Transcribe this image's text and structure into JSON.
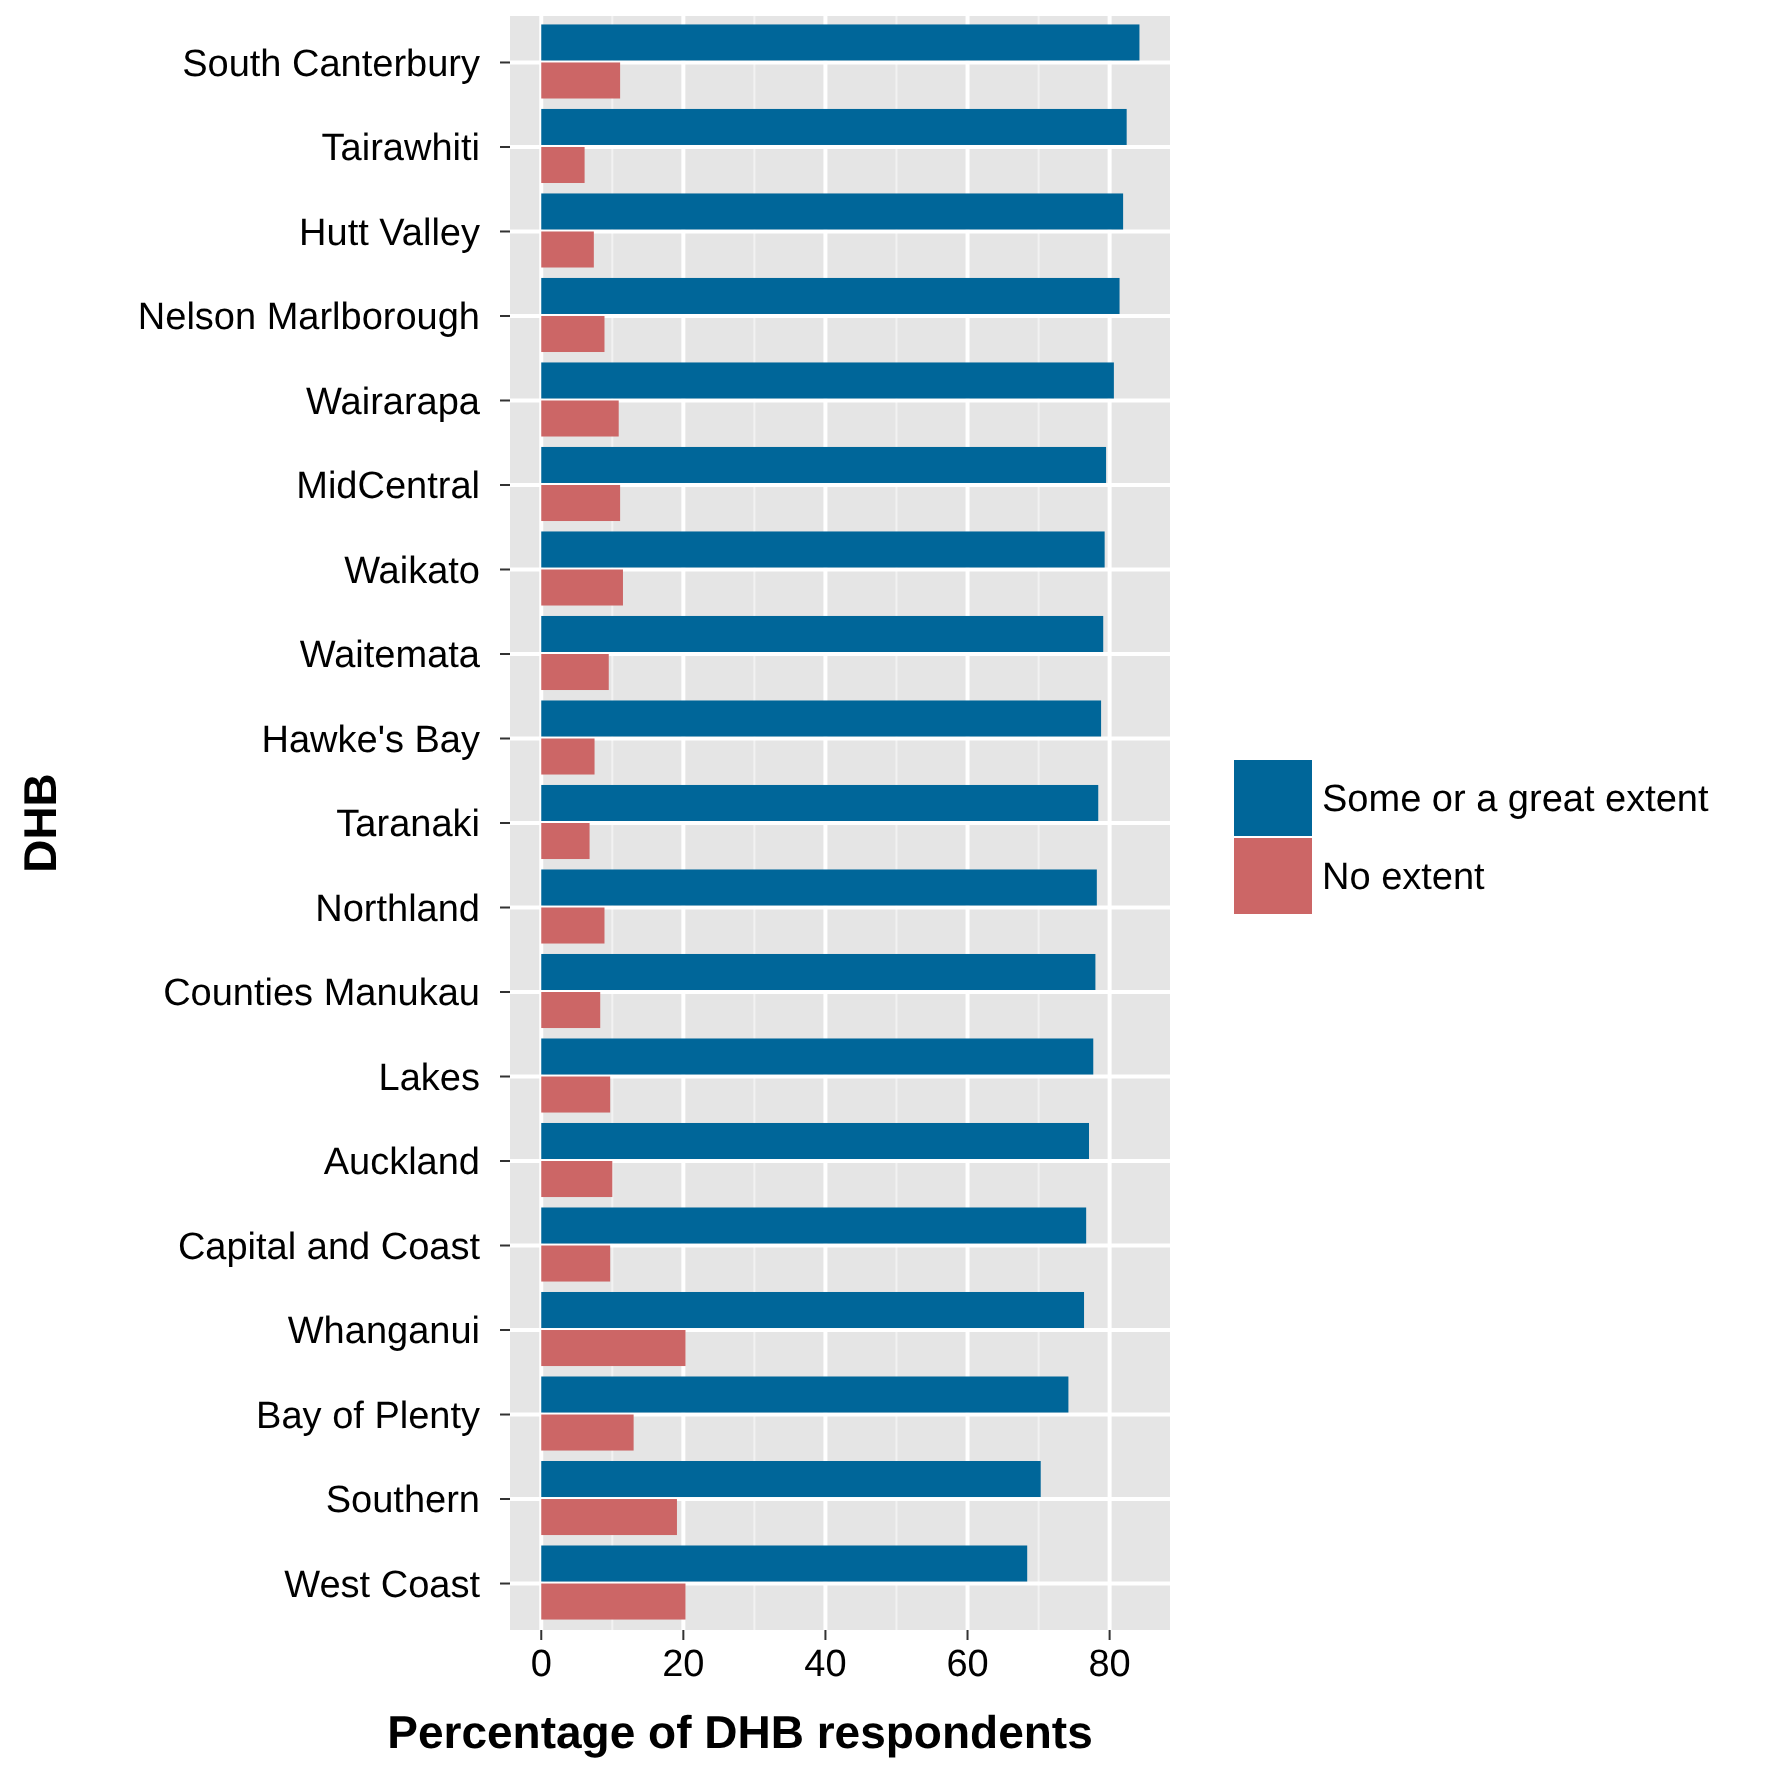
{
  "chart_data": {
    "type": "bar",
    "orientation": "horizontal",
    "xlabel": "Percentage of DHB respondents",
    "ylabel": "DHB",
    "categories": [
      "South Canterbury",
      "Tairawhiti",
      "Hutt Valley",
      "Nelson Marlborough",
      "Wairarapa",
      "MidCentral",
      "Waikato",
      "Waitemata",
      "Hawke's Bay",
      "Taranaki",
      "Northland",
      "Counties Manukau",
      "Lakes",
      "Auckland",
      "Capital and Coast",
      "Whanganui",
      "Bay of Plenty",
      "Southern",
      "West Coast"
    ],
    "series": [
      {
        "name": "Some or a great extent",
        "color": "#006699",
        "values": [
          84.2,
          82.4,
          81.9,
          81.4,
          80.6,
          79.5,
          79.3,
          79.1,
          78.8,
          78.4,
          78.2,
          78.0,
          77.7,
          77.1,
          76.7,
          76.4,
          74.2,
          70.3,
          68.4
        ]
      },
      {
        "name": "No extent",
        "color": "#cc6666",
        "values": [
          11.1,
          6.1,
          7.4,
          8.9,
          10.9,
          11.1,
          11.5,
          9.5,
          7.5,
          6.8,
          8.9,
          8.3,
          9.7,
          10.0,
          9.7,
          20.3,
          13.0,
          19.1,
          20.3
        ]
      }
    ],
    "xlim": [
      -4.4,
      88.5
    ],
    "xticks": [
      0,
      20,
      40,
      60,
      80
    ],
    "grid": true,
    "legend": "right"
  }
}
